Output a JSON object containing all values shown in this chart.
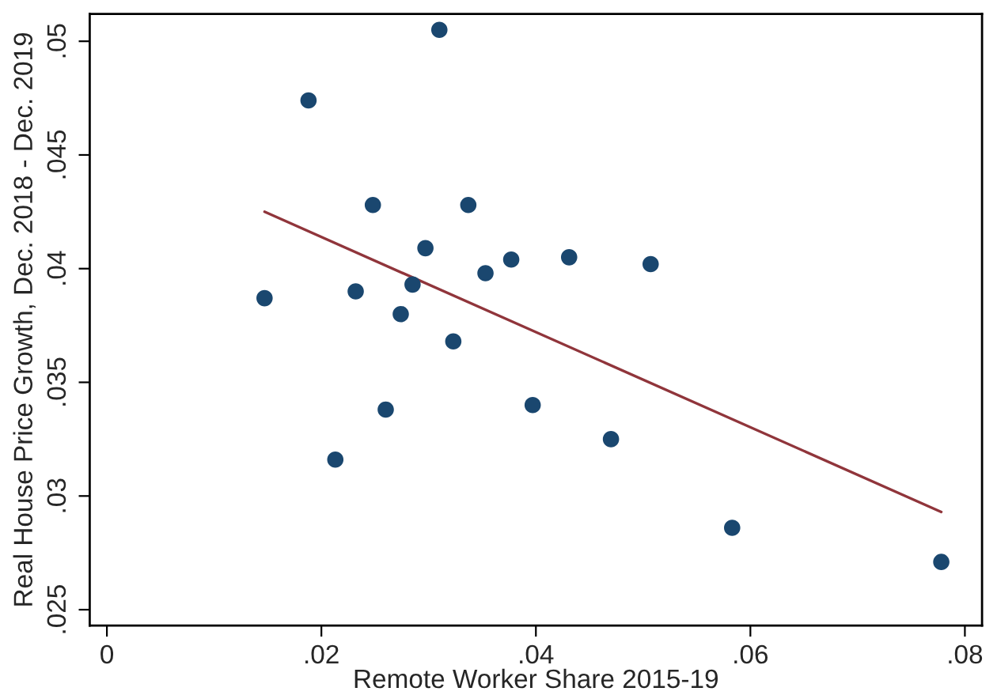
{
  "chart_data": {
    "type": "scatter",
    "xlabel": "Remote Worker Share 2015-19",
    "ylabel": "Real House Price Growth, Dec. 2018 - Dec. 2019",
    "xlim": [
      -0.0016,
      0.0816
    ],
    "ylim": [
      0.0243,
      0.0512
    ],
    "xticks": [
      {
        "value": 0,
        "label": "0"
      },
      {
        "value": 0.02,
        "label": ".02"
      },
      {
        "value": 0.04,
        "label": ".04"
      },
      {
        "value": 0.06,
        "label": ".06"
      },
      {
        "value": 0.08,
        "label": ".08"
      }
    ],
    "yticks": [
      {
        "value": 0.025,
        "label": ".025"
      },
      {
        "value": 0.03,
        "label": ".03"
      },
      {
        "value": 0.035,
        "label": ".035"
      },
      {
        "value": 0.04,
        "label": ".04"
      },
      {
        "value": 0.045,
        "label": ".045"
      },
      {
        "value": 0.05,
        "label": ".05"
      }
    ],
    "grid": false,
    "legend": false,
    "series": [
      {
        "marker": "circle",
        "color": "#1a476f",
        "x": [
          0.0147,
          0.0188,
          0.0213,
          0.0232,
          0.0248,
          0.026,
          0.0274,
          0.0285,
          0.0297,
          0.031,
          0.0337,
          0.0323,
          0.0353,
          0.0377,
          0.0431,
          0.0507,
          0.0397,
          0.047,
          0.0583,
          0.0778
        ],
        "values": [
          0.0387,
          0.0474,
          0.0316,
          0.039,
          0.0428,
          0.0338,
          0.038,
          0.0393,
          0.0409,
          0.0505,
          0.0428,
          0.0368,
          0.0398,
          0.0404,
          0.0405,
          0.0402,
          0.034,
          0.0325,
          0.0286,
          0.0271
        ]
      },
      {
        "type": "line",
        "color": "#90353b",
        "x": [
          0.0147,
          0.0778
        ],
        "values": [
          0.0425,
          0.0293
        ]
      }
    ]
  }
}
